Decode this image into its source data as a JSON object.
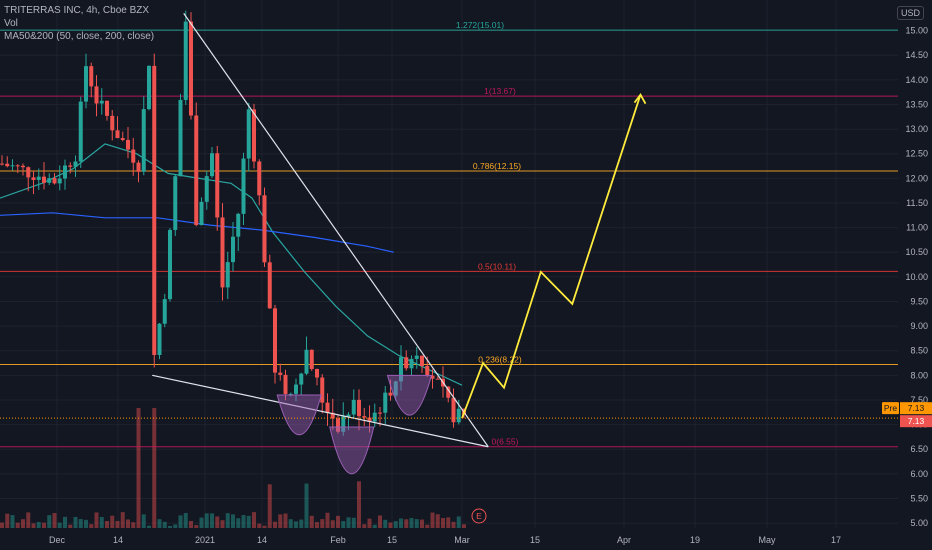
{
  "header": {
    "title": "TRITERRAS INC, 4h, Cboe BZX",
    "vol": "Vol",
    "ma": "MA50&200 (50, close, 200, close)",
    "currency": "USD"
  },
  "colors": {
    "background": "#131722",
    "grid": "#1e222d",
    "up": "#26a69a",
    "down": "#ef5350",
    "ma50": "#2aa6a1",
    "ma200": "#2962ff",
    "projection": "#ffeb3b",
    "cup": "#9c5fb5",
    "trendline": "#e0e3eb",
    "price_badge": "#ff9800"
  },
  "price_badges": {
    "pre_label": "Pre",
    "pre_value": "7.13",
    "last_value": "7.13"
  },
  "event_marker": "E",
  "chart_data": {
    "type": "candlestick",
    "x_axis": {
      "tick_labels": [
        "Dec",
        "14",
        "2021",
        "14",
        "Feb",
        "15",
        "Mar",
        "15",
        "Apr",
        "19",
        "May",
        "17"
      ]
    },
    "y_axis": {
      "tick_labels": [
        "5.00",
        "5.50",
        "6.00",
        "6.50",
        "7.00",
        "7.50",
        "8.00",
        "8.50",
        "9.00",
        "9.50",
        "10.00",
        "10.50",
        "11.00",
        "11.50",
        "12.00",
        "12.50",
        "13.00",
        "13.50",
        "14.00",
        "14.50",
        "15.00"
      ],
      "range": [
        4.9,
        15.5
      ],
      "side": "right"
    },
    "fibonacci_levels": [
      {
        "label": "1.272(15.01)",
        "value": 15.01
      },
      {
        "label": "1(13.67)",
        "value": 13.67
      },
      {
        "label": "0.786(12.15)",
        "value": 12.15
      },
      {
        "label": "0.5(10.11)",
        "value": 10.11
      },
      {
        "label": "0.236(8.22)",
        "value": 8.22
      },
      {
        "label": "0(6.55)",
        "value": 6.55
      }
    ],
    "current_price": 7.13,
    "close_path": [
      [
        0,
        12.3
      ],
      [
        6,
        12.1
      ],
      [
        10,
        11.95
      ],
      [
        14,
        12.5
      ],
      [
        16,
        14.3
      ],
      [
        18,
        13.6
      ],
      [
        22,
        12.9
      ],
      [
        26,
        12.3
      ],
      [
        28,
        14.4
      ],
      [
        29,
        8.4
      ],
      [
        31,
        9.7
      ],
      [
        33,
        12.0
      ],
      [
        35,
        15.2
      ],
      [
        37,
        11.2
      ],
      [
        40,
        12.5
      ],
      [
        42,
        9.8
      ],
      [
        45,
        11.3
      ],
      [
        47,
        13.4
      ],
      [
        49,
        11.6
      ],
      [
        52,
        8.0
      ],
      [
        55,
        7.6
      ],
      [
        58,
        8.5
      ],
      [
        61,
        7.5
      ],
      [
        64,
        7.0
      ],
      [
        67,
        7.4
      ],
      [
        70,
        7.1
      ],
      [
        73,
        7.5
      ],
      [
        76,
        8.2
      ],
      [
        79,
        8.5
      ],
      [
        82,
        8.0
      ],
      [
        84,
        7.6
      ],
      [
        86,
        7.2
      ],
      [
        88,
        7.13
      ]
    ],
    "ma50_path": [
      [
        0,
        11.6
      ],
      [
        8,
        11.9
      ],
      [
        14,
        12.2
      ],
      [
        20,
        12.7
      ],
      [
        26,
        12.5
      ],
      [
        32,
        12.1
      ],
      [
        38,
        12.0
      ],
      [
        44,
        11.9
      ],
      [
        48,
        11.6
      ],
      [
        52,
        10.9
      ],
      [
        58,
        10.1
      ],
      [
        64,
        9.4
      ],
      [
        70,
        8.8
      ],
      [
        76,
        8.4
      ],
      [
        82,
        8.1
      ],
      [
        88,
        7.8
      ]
    ],
    "ma200_path": [
      [
        0,
        11.25
      ],
      [
        10,
        11.3
      ],
      [
        20,
        11.2
      ],
      [
        30,
        11.2
      ],
      [
        40,
        11.05
      ],
      [
        50,
        10.95
      ],
      [
        60,
        10.8
      ],
      [
        70,
        10.62
      ],
      [
        75,
        10.5
      ]
    ],
    "trendlines": [
      {
        "name": "upper-resistance",
        "from": [
          35,
          15.35
        ],
        "to": [
          93,
          6.55
        ]
      },
      {
        "name": "lower-support",
        "from": [
          29,
          8.0
        ],
        "to": [
          93,
          6.55
        ]
      }
    ],
    "cups": [
      {
        "name": "left-shoulder",
        "center_x": 57,
        "top": 7.6,
        "bottom": 6.75
      },
      {
        "name": "head",
        "center_x": 67,
        "top": 6.95,
        "bottom": 5.95
      },
      {
        "name": "right-shoulder",
        "center_x": 78,
        "top": 8.0,
        "bottom": 7.15
      }
    ],
    "projection_path": [
      [
        88,
        7.13
      ],
      [
        92,
        8.25
      ],
      [
        96,
        7.75
      ],
      [
        103,
        10.1
      ],
      [
        109,
        9.45
      ],
      [
        122,
        13.7
      ]
    ],
    "volume_axis_note": "bars at bottom",
    "legend": "top-left"
  }
}
